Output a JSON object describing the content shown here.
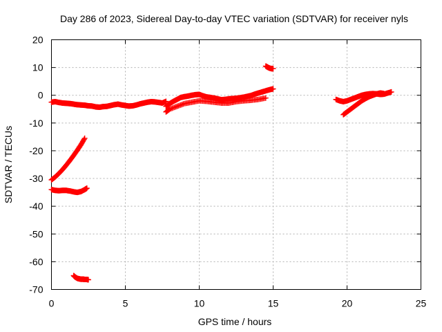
{
  "chart_data": {
    "type": "scatter",
    "title": "Day 286 of 2023, Sidereal Day-to-day VTEC variation (SDTVAR) for receiver nyls",
    "xlabel": "GPS time / hours",
    "ylabel": "SDTVAR / TECUs",
    "xlim": [
      0,
      25
    ],
    "ylim": [
      -70,
      20
    ],
    "xticks": [
      0,
      5,
      10,
      15,
      20,
      25
    ],
    "yticks": [
      -70,
      -60,
      -50,
      -40,
      -30,
      -20,
      -10,
      0,
      10,
      20
    ],
    "grid": true,
    "marker": "plus",
    "color": "#ff0000",
    "series": [
      {
        "name": "main-band-early",
        "x": [
          0.0,
          0.25,
          0.5,
          0.75,
          1.0,
          1.25,
          1.5,
          1.75,
          2.0,
          2.25,
          2.5,
          2.75,
          3.0,
          3.25,
          3.5,
          3.75,
          4.0,
          4.25,
          4.5,
          4.75,
          5.0,
          5.25,
          5.5,
          5.75,
          6.0,
          6.25,
          6.5,
          6.75,
          7.0,
          7.25,
          7.5,
          7.75
        ],
        "y": [
          -2.5,
          -2.3,
          -2.6,
          -2.8,
          -2.9,
          -3.0,
          -3.2,
          -3.4,
          -3.5,
          -3.6,
          -3.8,
          -3.9,
          -4.2,
          -4.3,
          -4.1,
          -4.0,
          -3.7,
          -3.4,
          -3.2,
          -3.5,
          -3.7,
          -3.9,
          -3.8,
          -3.5,
          -3.1,
          -2.8,
          -2.5,
          -2.3,
          -2.4,
          -2.6,
          -2.8,
          -2.2
        ]
      },
      {
        "name": "main-band-middle",
        "x": [
          7.75,
          8.0,
          8.25,
          8.5,
          8.75,
          9.0,
          9.25,
          9.5,
          9.75,
          10.0,
          10.25,
          10.5,
          10.75,
          11.0,
          11.25,
          11.5,
          11.75,
          12.0,
          12.25,
          12.5,
          12.75,
          13.0,
          13.25,
          13.5,
          13.75,
          14.0,
          14.25,
          14.5,
          14.75,
          15.0
        ],
        "y": [
          -4.0,
          -3.0,
          -2.2,
          -1.5,
          -0.8,
          -0.5,
          -0.3,
          0.0,
          0.2,
          0.3,
          -0.2,
          -0.6,
          -0.8,
          -1.0,
          -1.3,
          -1.6,
          -1.5,
          -1.3,
          -1.2,
          -1.1,
          -0.9,
          -0.7,
          -0.4,
          -0.1,
          0.4,
          0.8,
          1.2,
          1.6,
          2.0,
          2.3
        ]
      },
      {
        "name": "main-band-lower-edge",
        "x": [
          7.75,
          8.0,
          8.5,
          9.0,
          9.5,
          10.0,
          10.5,
          11.0,
          11.5,
          12.0,
          12.5,
          13.0,
          13.5,
          14.0,
          14.5
        ],
        "y": [
          -6.0,
          -5.0,
          -4.0,
          -3.0,
          -2.5,
          -2.0,
          -2.2,
          -2.5,
          -2.8,
          -2.8,
          -2.3,
          -2.0,
          -1.8,
          -1.5,
          -1.0
        ]
      },
      {
        "name": "high-arc",
        "x": [
          14.5,
          14.6,
          14.7,
          14.8,
          14.9,
          15.0
        ],
        "y": [
          10.5,
          10.2,
          9.9,
          9.7,
          9.6,
          9.6
        ]
      },
      {
        "name": "rising-arc",
        "x": [
          0.0,
          0.25,
          0.5,
          0.75,
          1.0,
          1.25,
          1.5,
          1.75,
          2.0,
          2.25
        ],
        "y": [
          -30.5,
          -29.5,
          -28.2,
          -26.8,
          -25.2,
          -23.5,
          -21.7,
          -19.8,
          -17.8,
          -15.5
        ]
      },
      {
        "name": "flat-arc",
        "x": [
          0.0,
          0.25,
          0.5,
          0.75,
          1.0,
          1.25,
          1.5,
          1.75,
          2.0,
          2.25,
          2.4
        ],
        "y": [
          -34.0,
          -34.3,
          -34.4,
          -34.3,
          -34.3,
          -34.5,
          -34.8,
          -35.0,
          -34.7,
          -34.0,
          -33.5
        ]
      },
      {
        "name": "low-arc",
        "x": [
          1.5,
          1.6,
          1.75,
          1.9,
          2.0,
          2.15,
          2.25,
          2.4,
          2.5
        ],
        "y": [
          -65.0,
          -65.5,
          -66.0,
          -66.2,
          -66.3,
          -66.3,
          -66.4,
          -66.4,
          -66.5
        ]
      },
      {
        "name": "late-upper",
        "x": [
          19.25,
          19.5,
          19.75,
          20.0,
          20.25,
          20.5,
          20.75,
          21.0,
          21.25,
          21.5,
          21.75,
          22.0,
          22.25,
          22.5,
          22.75,
          23.0
        ],
        "y": [
          -1.5,
          -2.0,
          -2.3,
          -2.0,
          -1.5,
          -1.0,
          -0.5,
          0.0,
          0.3,
          0.5,
          0.6,
          0.5,
          0.3,
          0.4,
          0.8,
          1.2
        ]
      },
      {
        "name": "late-lower",
        "x": [
          19.75,
          20.0,
          20.25,
          20.5,
          20.75,
          21.0,
          21.25,
          21.5,
          21.75,
          22.0,
          22.25,
          22.5
        ],
        "y": [
          -7.0,
          -6.0,
          -5.0,
          -4.0,
          -3.0,
          -2.0,
          -1.2,
          -0.5,
          0.0,
          0.5,
          0.8,
          0.6
        ]
      }
    ]
  }
}
